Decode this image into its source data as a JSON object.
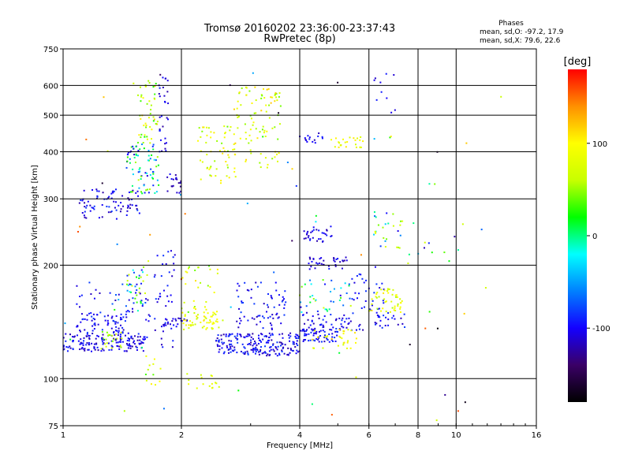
{
  "chart_data": {
    "type": "scatter",
    "title": "Tromsø 20160202 23:36:00-23:37:43",
    "subtitle": "RwPretec (8p)",
    "xlabel": "Frequency [MHz]",
    "ylabel": "Stationary phase Virtual Height [km]",
    "x_scale": "log",
    "y_scale": "log",
    "xlim": [
      1,
      16
    ],
    "ylim": [
      75,
      750
    ],
    "x_ticks": [
      1,
      2,
      4,
      6,
      8,
      10,
      16
    ],
    "x_tick_labels": [
      "1",
      "2",
      "4",
      "6",
      "8",
      "10",
      "16"
    ],
    "x_gridlines": [
      2,
      4,
      6,
      8,
      10
    ],
    "y_ticks": [
      75,
      100,
      200,
      300,
      400,
      500,
      600,
      750
    ],
    "y_tick_labels": [
      "75",
      "100",
      "200",
      "300",
      "400",
      "500",
      "600",
      "750"
    ],
    "y_gridlines": [
      100,
      200,
      300,
      400,
      500,
      600
    ],
    "grid": true,
    "stats": {
      "heading": "Phases",
      "line_o": "mean, sd,O:  -97.2, 17.9",
      "line_x": "mean, sd,X:  79.6, 22.6"
    },
    "colorbar": {
      "label": "[deg]",
      "range": [
        -180,
        180
      ],
      "ticks": [
        100,
        0,
        -100
      ],
      "tick_labels": [
        "100",
        "0",
        "-100"
      ],
      "colors": [
        "#000000",
        "#3a0066",
        "#1400ff",
        "#0080ff",
        "#00ffff",
        "#00ff00",
        "#c8ff00",
        "#ffff00",
        "#ff9000",
        "#ff0000"
      ]
    },
    "clusters": [
      {
        "f": [
          1.0,
          1.62
        ],
        "h": [
          118,
          132
        ],
        "phase": [
          -125,
          -85
        ],
        "n": 160
      },
      {
        "f": [
          1.08,
          1.45
        ],
        "h": [
          132,
          150
        ],
        "phase": [
          -120,
          -80
        ],
        "n": 70
      },
      {
        "f": [
          1.25,
          1.42
        ],
        "h": [
          120,
          135
        ],
        "phase": [
          40,
          80
        ],
        "n": 20
      },
      {
        "f": [
          1.45,
          1.65
        ],
        "h": [
          150,
          200
        ],
        "phase": [
          -110,
          80
        ],
        "n": 40
      },
      {
        "f": [
          1.05,
          1.6
        ],
        "h": [
          150,
          180
        ],
        "phase": [
          -120,
          -70
        ],
        "n": 25
      },
      {
        "f": [
          1.1,
          1.58
        ],
        "h": [
          265,
          320
        ],
        "phase": [
          -125,
          -80
        ],
        "n": 80
      },
      {
        "f": [
          1.45,
          1.75
        ],
        "h": [
          310,
          420
        ],
        "phase": [
          -120,
          60
        ],
        "n": 80
      },
      {
        "f": [
          1.55,
          1.75
        ],
        "h": [
          420,
          620
        ],
        "phase": [
          20,
          120
        ],
        "n": 50
      },
      {
        "f": [
          1.75,
          1.85
        ],
        "h": [
          400,
          640
        ],
        "phase": [
          -125,
          -90
        ],
        "n": 30
      },
      {
        "f": [
          1.82,
          2.0
        ],
        "h": [
          310,
          350
        ],
        "phase": [
          -130,
          -90
        ],
        "n": 20
      },
      {
        "f": [
          1.62,
          1.78
        ],
        "h": [
          96,
          115
        ],
        "phase": [
          30,
          110
        ],
        "n": 12
      },
      {
        "f": [
          1.62,
          1.95
        ],
        "h": [
          120,
          220
        ],
        "phase": [
          -120,
          -80
        ],
        "n": 50
      },
      {
        "f": [
          1.8,
          2.1
        ],
        "h": [
          138,
          145
        ],
        "phase": [
          -120,
          -100
        ],
        "n": 20
      },
      {
        "f": [
          2.0,
          2.55
        ],
        "h": [
          135,
          150
        ],
        "phase": [
          60,
          110
        ],
        "n": 55
      },
      {
        "f": [
          2.0,
          2.5
        ],
        "h": [
          150,
          200
        ],
        "phase": [
          30,
          110
        ],
        "n": 30
      },
      {
        "f": [
          2.05,
          2.5
        ],
        "h": [
          94,
          104
        ],
        "phase": [
          60,
          110
        ],
        "n": 15
      },
      {
        "f": [
          2.2,
          2.75
        ],
        "h": [
          330,
          470
        ],
        "phase": [
          40,
          110
        ],
        "n": 60
      },
      {
        "f": [
          2.7,
          3.6
        ],
        "h": [
          360,
          600
        ],
        "phase": [
          40,
          120
        ],
        "n": 90
      },
      {
        "f": [
          2.45,
          4.0
        ],
        "h": [
          115,
          132
        ],
        "phase": [
          -125,
          -80
        ],
        "n": 200
      },
      {
        "f": [
          2.7,
          3.7
        ],
        "h": [
          135,
          180
        ],
        "phase": [
          -120,
          -80
        ],
        "n": 70
      },
      {
        "f": [
          3.9,
          5.0
        ],
        "h": [
          125,
          135
        ],
        "phase": [
          -120,
          -80
        ],
        "n": 60
      },
      {
        "f": [
          4.0,
          5.8
        ],
        "h": [
          133,
          150
        ],
        "phase": [
          -120,
          -80
        ],
        "n": 60
      },
      {
        "f": [
          4.3,
          5.6
        ],
        "h": [
          120,
          135
        ],
        "phase": [
          60,
          120
        ],
        "n": 30
      },
      {
        "f": [
          4.0,
          4.6
        ],
        "h": [
          420,
          450
        ],
        "phase": [
          -120,
          -90
        ],
        "n": 15
      },
      {
        "f": [
          4.8,
          5.8
        ],
        "h": [
          410,
          440
        ],
        "phase": [
          70,
          110
        ],
        "n": 25
      },
      {
        "f": [
          4.1,
          4.8
        ],
        "h": [
          230,
          255
        ],
        "phase": [
          -125,
          -90
        ],
        "n": 30
      },
      {
        "f": [
          4.2,
          5.3
        ],
        "h": [
          195,
          210
        ],
        "phase": [
          -125,
          -90
        ],
        "n": 35
      },
      {
        "f": [
          4.0,
          5.6
        ],
        "h": [
          150,
          185
        ],
        "phase": [
          -120,
          90
        ],
        "n": 40
      },
      {
        "f": [
          5.4,
          6.6
        ],
        "h": [
          150,
          190
        ],
        "phase": [
          -110,
          -80
        ],
        "n": 30
      },
      {
        "f": [
          6.0,
          7.3
        ],
        "h": [
          150,
          175
        ],
        "phase": [
          50,
          110
        ],
        "n": 45
      },
      {
        "f": [
          6.2,
          7.3
        ],
        "h": [
          220,
          280
        ],
        "phase": [
          -110,
          100
        ],
        "n": 25
      },
      {
        "f": [
          6.2,
          7.4
        ],
        "h": [
          135,
          150
        ],
        "phase": [
          -120,
          -80
        ],
        "n": 25
      },
      {
        "f": [
          7.5,
          10.5
        ],
        "h": [
          200,
          260
        ],
        "phase": [
          -120,
          140
        ],
        "n": 12
      },
      {
        "f": [
          6.0,
          7.2
        ],
        "h": [
          500,
          650
        ],
        "phase": [
          -120,
          -90
        ],
        "n": 10
      },
      {
        "f": [
          1.0,
          13.5
        ],
        "h": [
          76,
          700
        ],
        "phase": [
          -180,
          160
        ],
        "n": 70
      }
    ]
  }
}
